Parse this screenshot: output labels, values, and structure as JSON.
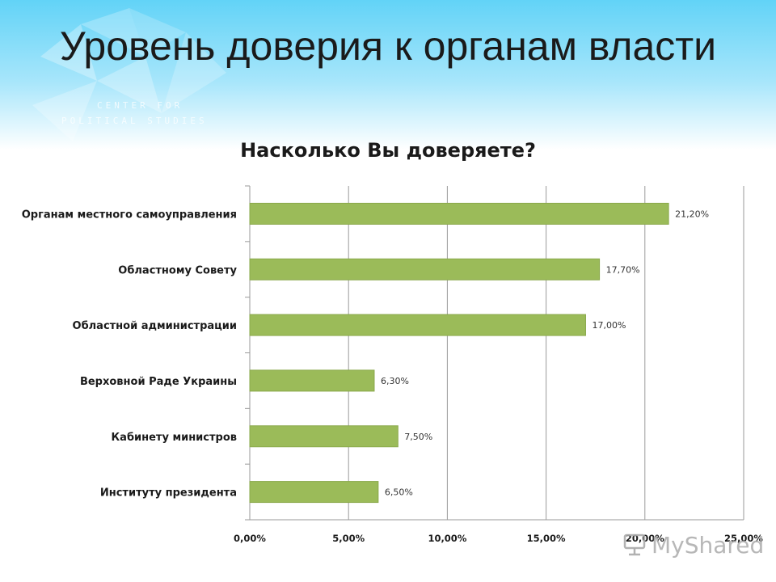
{
  "slide": {
    "title": "Уровень доверия к органам власти",
    "logo_line1": "CENTER FOR",
    "logo_line2": "POLITICAL STUDIES"
  },
  "watermark": {
    "text": "MyShared",
    "icon": "presentation-board-icon"
  },
  "chart_data": {
    "type": "bar",
    "orientation": "horizontal",
    "title": "Насколько Вы доверяете?",
    "categories": [
      "Органам местного самоуправления",
      "Областному Совету",
      "Областной администрации",
      "Верховной Раде Украины",
      "Кабинету министров",
      "Институту президента"
    ],
    "values": [
      21.2,
      17.7,
      17.0,
      6.3,
      7.5,
      6.5
    ],
    "value_labels": [
      "21,20%",
      "17,70%",
      "17,00%",
      "6,30%",
      "7,50%",
      "6,50%"
    ],
    "xlim": [
      0,
      25
    ],
    "ticks": [
      0,
      5,
      10,
      15,
      20,
      25
    ],
    "tick_labels": [
      "0,00%",
      "5,00%",
      "10,00%",
      "15,00%",
      "20,00%",
      "25,00%"
    ],
    "grid": true,
    "legend": "none",
    "bar_color": "#9bbb59"
  }
}
